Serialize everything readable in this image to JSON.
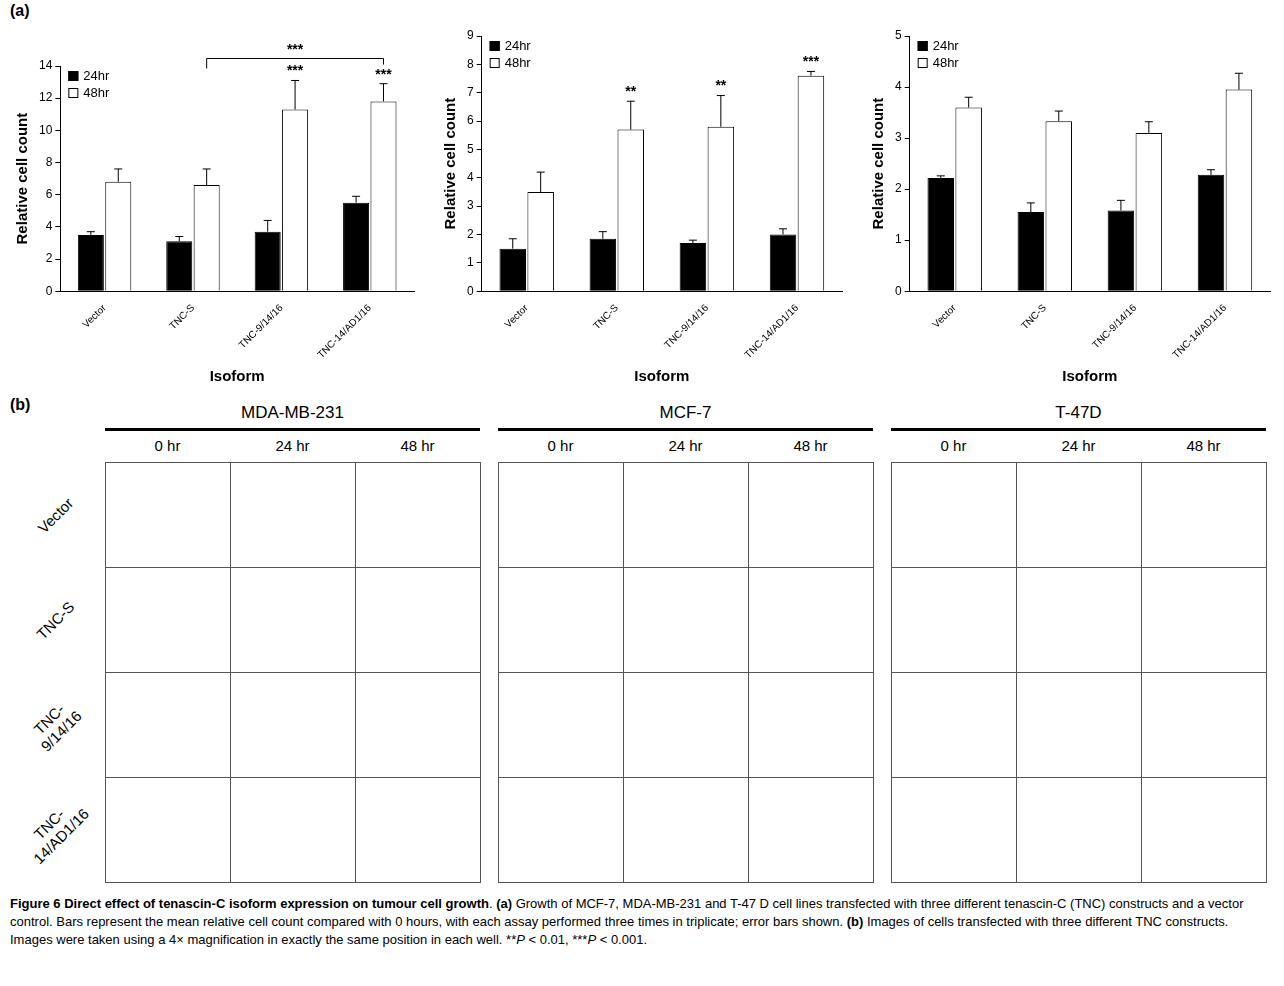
{
  "chart_data": [
    {
      "type": "bar",
      "categories": [
        "Vector",
        "TNC-S",
        "TNC-9/14/16",
        "TNC-14/AD1/16"
      ],
      "series": [
        {
          "name": "24hr",
          "color": "#000000",
          "values": [
            3.5,
            3.1,
            3.7,
            5.5
          ],
          "errors": [
            0.2,
            0.3,
            0.7,
            0.4
          ]
        },
        {
          "name": "48hr",
          "color": "#ffffff",
          "values": [
            6.8,
            6.6,
            11.3,
            11.8
          ],
          "errors": [
            0.8,
            1.0,
            1.8,
            1.1
          ]
        }
      ],
      "x_label": "Isoform",
      "y_label": "Relative cell count",
      "ylim": [
        0,
        14
      ],
      "yticks": [
        0,
        2,
        4,
        6,
        8,
        10,
        12,
        14
      ],
      "grid": false,
      "legend": "top-left",
      "annotations": [
        {
          "text": "***",
          "category": "TNC-9/14/16",
          "series": "48hr"
        },
        {
          "text": "***",
          "category": "TNC-14/AD1/16",
          "series": "48hr"
        },
        {
          "text": "***",
          "from": "TNC-S",
          "to": "TNC-14/AD1/16",
          "series": "48hr"
        }
      ]
    },
    {
      "type": "bar",
      "categories": [
        "Vector",
        "TNC-S",
        "TNC-9/14/16",
        "TNC-14/AD1/16"
      ],
      "series": [
        {
          "name": "24hr",
          "color": "#000000",
          "values": [
            1.5,
            1.85,
            1.7,
            2.0
          ],
          "errors": [
            0.35,
            0.25,
            0.1,
            0.2
          ]
        },
        {
          "name": "48hr",
          "color": "#ffffff",
          "values": [
            3.5,
            5.7,
            5.8,
            7.6
          ],
          "errors": [
            0.7,
            1.0,
            1.1,
            0.15
          ]
        }
      ],
      "x_label": "Isoform",
      "y_label": "Relative cell count",
      "ylim": [
        0,
        9
      ],
      "yticks": [
        0,
        1,
        2,
        3,
        4,
        5,
        6,
        7,
        8,
        9
      ],
      "grid": false,
      "legend": "top-left",
      "annotations": [
        {
          "text": "**",
          "category": "TNC-S",
          "series": "48hr"
        },
        {
          "text": "**",
          "category": "TNC-9/14/16",
          "series": "48hr"
        },
        {
          "text": "***",
          "category": "TNC-14/AD1/16",
          "series": "48hr"
        }
      ]
    },
    {
      "type": "bar",
      "categories": [
        "Vector",
        "TNC-S",
        "TNC-9/14/16",
        "TNC-14/AD1/16"
      ],
      "series": [
        {
          "name": "24hr",
          "color": "#000000",
          "values": [
            2.22,
            1.55,
            1.58,
            2.28
          ],
          "errors": [
            0.04,
            0.18,
            0.2,
            0.1
          ]
        },
        {
          "name": "48hr",
          "color": "#ffffff",
          "values": [
            3.6,
            3.33,
            3.1,
            3.95
          ],
          "errors": [
            0.2,
            0.2,
            0.22,
            0.32
          ]
        }
      ],
      "x_label": "Isoform",
      "y_label": "Relative cell count",
      "ylim": [
        0,
        5
      ],
      "yticks": [
        0,
        1,
        2,
        3,
        4,
        5
      ],
      "grid": false,
      "legend": "top-left",
      "annotations": []
    }
  ],
  "panel_labels": {
    "a": "(a)",
    "b": "(b)"
  },
  "image_grid": {
    "groups": [
      "MDA-MB-231",
      "MCF-7",
      "T-47D"
    ],
    "columns": [
      "0 hr",
      "24 hr",
      "48 hr"
    ],
    "rows": [
      "Vector",
      "TNC-S",
      "TNC-9/14/16",
      "TNC-14/AD1/16"
    ]
  },
  "caption": [
    {
      "text": "Figure 6 Direct effect of tenascin-C isoform expression on tumour cell growth",
      "style": "bold"
    },
    {
      "text": ". ",
      "style": "normal"
    },
    {
      "text": "(a)",
      "style": "bold"
    },
    {
      "text": " Growth of MCF-7, MDA-MB-231 and T-47 D cell lines transfected with three different tenascin-C (TNC) constructs and a vector control. Bars represent the mean relative cell count compared with 0 hours, with each assay performed three times in triplicate; error bars shown. ",
      "style": "normal"
    },
    {
      "text": "(b)",
      "style": "bold"
    },
    {
      "text": " Images of cells transfected with three different TNC constructs. Images were taken using a 4× magnification in exactly the same position in each well. **",
      "style": "normal"
    },
    {
      "text": "P",
      "style": "italic"
    },
    {
      "text": " < 0.01, ***",
      "style": "normal"
    },
    {
      "text": "P",
      "style": "italic"
    },
    {
      "text": " < 0.001.",
      "style": "normal"
    }
  ]
}
